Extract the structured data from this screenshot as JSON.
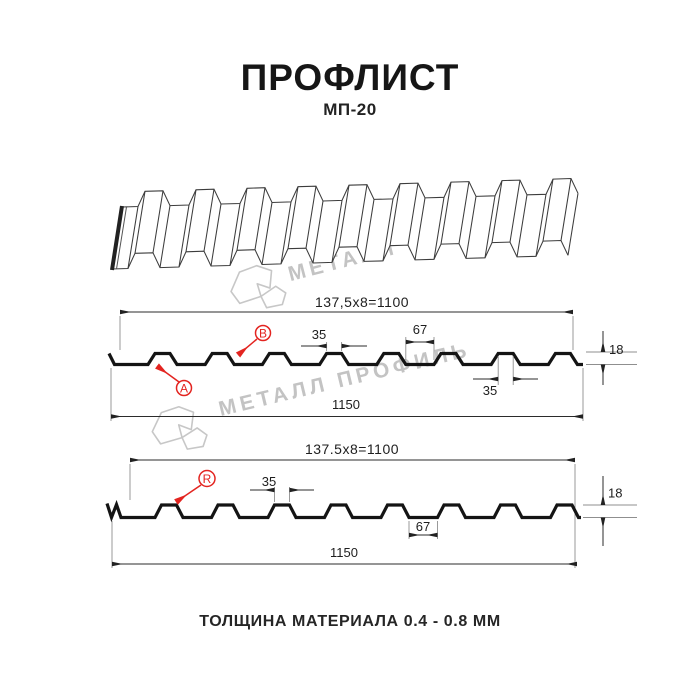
{
  "header": {
    "title": "ПРОФЛИСТ",
    "subtitle": "МП-20"
  },
  "footer": {
    "text": "ТОЛЩИНА МАТЕРИАЛА 0.4 - 0.8 ММ"
  },
  "watermark": {
    "text": "МЕТАЛЛ ПРОФИЛЬ",
    "color": "#c3c3c3"
  },
  "colors": {
    "accent_red": "#e32420",
    "line_black": "#141414",
    "dim_gray": "#8f8f8f"
  },
  "profile_front": {
    "dim_formula": "137,5x8=1100",
    "dim_total": "1150",
    "dim_rib_top": "35",
    "dim_valley": "67",
    "dim_height": "18",
    "dim_rib_bottom": "35",
    "label_a": "A",
    "label_b": "B"
  },
  "profile_reverse": {
    "dim_formula": "137.5x8=1100",
    "dim_total": "1150",
    "dim_rib_top": "35",
    "dim_valley": "67",
    "dim_height": "18",
    "label_r": "R"
  }
}
